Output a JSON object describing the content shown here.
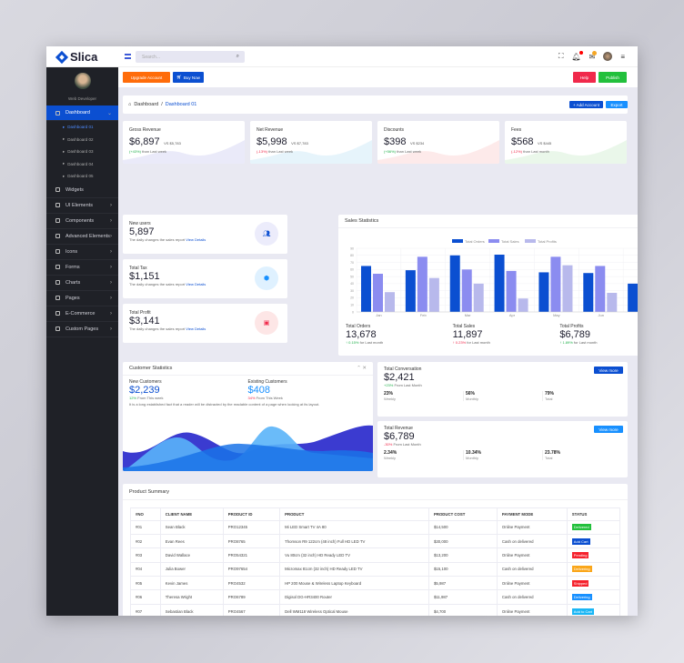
{
  "app": {
    "name": "Slica",
    "search_placeholder": "Search..."
  },
  "sidebar": {
    "role": "Web Developer",
    "items": [
      {
        "label": "Dashboard",
        "active": true,
        "sub": [
          "Dashboard 01",
          "Dashboard 02",
          "Dashboard 03",
          "Dashboard 04",
          "Dashboard 05"
        ]
      },
      {
        "label": "Widgets"
      },
      {
        "label": "UI Elements"
      },
      {
        "label": "Components"
      },
      {
        "label": "Advanced Elements"
      },
      {
        "label": "Icons"
      },
      {
        "label": "Forms"
      },
      {
        "label": "Charts"
      },
      {
        "label": "Pages"
      },
      {
        "label": "E-Commerce"
      },
      {
        "label": "Custom Pages"
      }
    ]
  },
  "toolbar": {
    "upgrade": "Upgrade Account",
    "buy": "Buy Now",
    "help": "Help",
    "publish": "Publish"
  },
  "breadcrumb": {
    "home": "Dashboard",
    "sep": "/",
    "current": "Dashboard 01",
    "add": "+ Add Account",
    "export": "Export"
  },
  "stats": [
    {
      "title": "Gross Revenue",
      "value": "$6,897",
      "vs": "VS $5,783",
      "change": "(+43%)",
      "dir": "up",
      "note": "than Last week",
      "color": "#dcdcf5"
    },
    {
      "title": "Net Revenue",
      "value": "$5,998",
      "vs": "VS $7,783",
      "change": "(-13%)",
      "dir": "down",
      "note": "than Last week",
      "color": "#d5ecf9"
    },
    {
      "title": "Discounts",
      "value": "$398",
      "vs": "VS $234",
      "change": "(+56%)",
      "dir": "up",
      "note": "than Last week",
      "color": "#fbdcdc"
    },
    {
      "title": "Fees",
      "value": "$568",
      "vs": "VS $445",
      "change": "(-12%)",
      "dir": "down",
      "note": "than Last month",
      "color": "#dcf2dc"
    }
  ],
  "mini": [
    {
      "title": "New users",
      "value": "5,897",
      "desc": "The daily changes the sales report",
      "link": "View Details"
    },
    {
      "title": "Total Tax",
      "value": "$1,151",
      "desc": "The daily changes the sales report",
      "link": "View Details"
    },
    {
      "title": "Total Profit",
      "value": "$3,141",
      "desc": "The daily changes the sales report",
      "link": "View Details"
    }
  ],
  "sales": {
    "title": "Sales Statistics",
    "totals": [
      {
        "label": "Total Orders",
        "value": "13,678",
        "change": "0.15%",
        "note": "for Last month",
        "dir": "up"
      },
      {
        "label": "Total Sales",
        "value": "11,897",
        "change": "0.23%",
        "note": "for Last month",
        "dir": "down"
      },
      {
        "label": "Total Profits",
        "value": "$6,789",
        "change": "1.89%",
        "note": "for Last month",
        "dir": "up"
      }
    ]
  },
  "chart_data": {
    "type": "bar",
    "categories": [
      "Jan",
      "Feb",
      "Mar",
      "Apr",
      "May",
      "Jun",
      "Jul"
    ],
    "ylim": [
      0,
      90
    ],
    "yticks": [
      0,
      10,
      20,
      30,
      40,
      50,
      60,
      70,
      80,
      90
    ],
    "grid": true,
    "legend": "top",
    "series": [
      {
        "name": "Total Orders",
        "color": "#0b4fd1",
        "values": [
          65,
          59,
          80,
          81,
          56,
          55,
          40
        ]
      },
      {
        "name": "Total Sales",
        "color": "#8b8cf0",
        "values": [
          54,
          78,
          60,
          58,
          78,
          65,
          80
        ]
      },
      {
        "name": "Total Profits",
        "color": "#b8b9ec",
        "values": [
          28,
          48,
          40,
          19,
          66,
          27,
          50
        ]
      }
    ]
  },
  "customer": {
    "title": "Customer Statistics",
    "new_label": "New Customers",
    "new_value": "$2,239",
    "new_change": "12%",
    "new_note": "From This week",
    "ex_label": "Existing Customers",
    "ex_value": "$408",
    "ex_change": "34%",
    "ex_note": "From This Week",
    "desc": "It is a long established fact that a reader will be distracted by the readable content of a page when looking at its layout."
  },
  "conversation": {
    "title": "Total Conversation",
    "value": "$2,421",
    "change": "+23%",
    "note": "From Last Month",
    "button": "View more",
    "cols": [
      {
        "v": "23%",
        "l": "Weekly"
      },
      {
        "v": "56%",
        "l": "Monthly"
      },
      {
        "v": "79%",
        "l": "Total"
      }
    ]
  },
  "revenue": {
    "title": "Total Revenue",
    "value": "$6,789",
    "change": "-30%",
    "note": "From Last Month",
    "button": "View more",
    "cols": [
      {
        "v": "2.34%",
        "l": "Weekly"
      },
      {
        "v": "10.34%",
        "l": "Monthly"
      },
      {
        "v": "23.78%",
        "l": "Total"
      }
    ]
  },
  "products": {
    "title": "Product Summary",
    "headers": [
      "#NO",
      "CLIENT NAME",
      "PRODUCT ID",
      "PRODUCT",
      "PRODUCT COST",
      "PAYMENT MODE",
      "STATUS"
    ],
    "rows": [
      [
        "#01",
        "Sean Black",
        "PRO12345",
        "Mi LED Smart TV 4A 80",
        "$14,500",
        "Online Payment",
        "Delivered",
        "#22c03c"
      ],
      [
        "#02",
        "Evan Rees",
        "PRO8765",
        "Thomson R9 122cm (48 inch) Full HD LED TV",
        "$30,000",
        "Cash on delivered",
        "Add Cart",
        "#0b4fd1"
      ],
      [
        "#03",
        "David Wallace",
        "PRO54321",
        "Vu 80cm (32 inch) HD Ready LED TV",
        "$13,200",
        "Online Payment",
        "Pending",
        "#f5222d"
      ],
      [
        "#04",
        "Julia Bower",
        "PRO97654",
        "Micromax 81cm (32 inch) HD Ready LED TV",
        "$15,100",
        "Cash on delivered",
        "Delivering",
        "#faa61a"
      ],
      [
        "#05",
        "Kevin James",
        "PRO4532",
        "HP 200 Mouse & Wireless Laptop Keyboard",
        "$5,987",
        "Online Payment",
        "Shipped",
        "#f5222d"
      ],
      [
        "#06",
        "Theresa Wright",
        "PRO6789",
        "Digisol DG-HR3400 Router",
        "$11,987",
        "Cash on delivered",
        "Delivering",
        "#1890ff"
      ],
      [
        "#07",
        "Sebastian Black",
        "PRO4567",
        "Dell WM118 Wireless Optical Mouse",
        "$4,700",
        "Online Payment",
        "Add to Cart",
        "#1ab6f5"
      ],
      [
        "#08",
        "Kevin Glover",
        "PRO32156",
        "Dell 16 inch Laptop Backpack",
        "$678",
        "Cash On delivered",
        "Delivered",
        "#faa61a"
      ]
    ]
  }
}
